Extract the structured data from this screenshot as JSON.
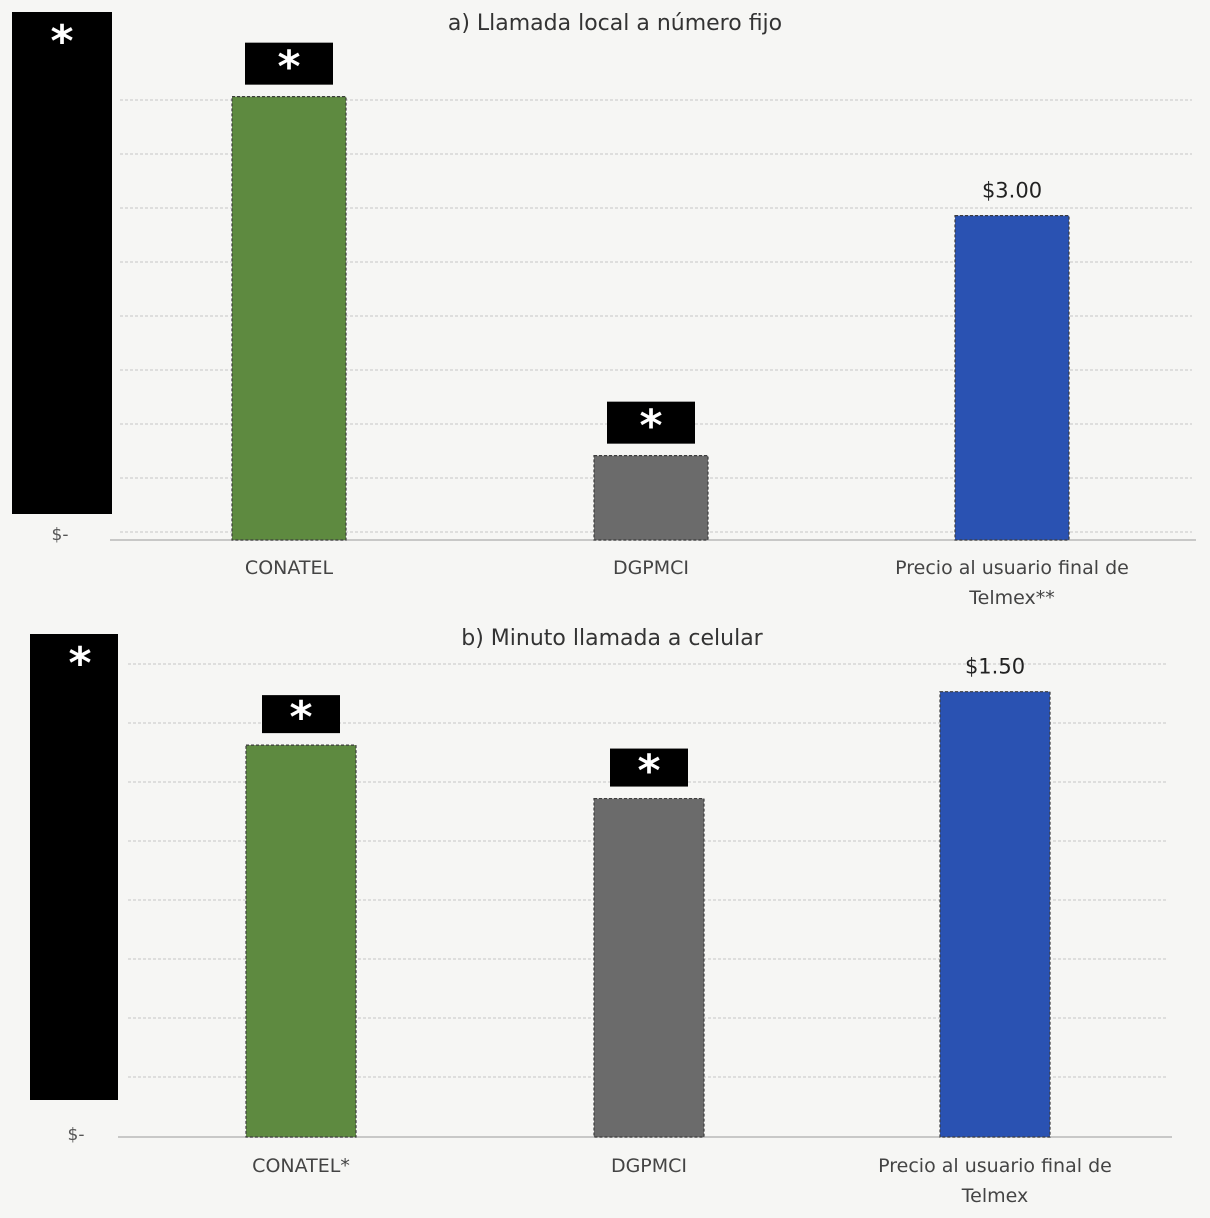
{
  "chart_data": [
    {
      "type": "bar",
      "title": "a) Llamada local a número fijo",
      "categories": [
        "CONATEL",
        "DGPMCI",
        "Precio al usuario final de Telmex**"
      ],
      "values": [
        4.1,
        0.78,
        3.0
      ],
      "data_labels": [
        "*",
        "*",
        "$3.00"
      ],
      "redacted": [
        true,
        true,
        false
      ],
      "y_tick_label": "$-",
      "ylim": [
        0,
        4.55
      ],
      "grid": true,
      "colors": [
        "#5e8a40",
        "#6b6b6b",
        "#2a52b2"
      ],
      "redaction_color": "#000000"
    },
    {
      "type": "bar",
      "title": "b) Minuto llamada a celular",
      "categories": [
        "CONATEL*",
        "DGPMCI",
        "Precio al usuario final de Telmex"
      ],
      "values": [
        1.32,
        1.14,
        1.5
      ],
      "data_labels": [
        "*",
        "*",
        "$1.50"
      ],
      "redacted": [
        true,
        true,
        false
      ],
      "y_tick_label": "$-",
      "ylim": [
        0,
        1.6
      ],
      "grid": true,
      "colors": [
        "#5e8a40",
        "#6b6b6b",
        "#2a52b2"
      ],
      "redaction_color": "#000000"
    }
  ]
}
